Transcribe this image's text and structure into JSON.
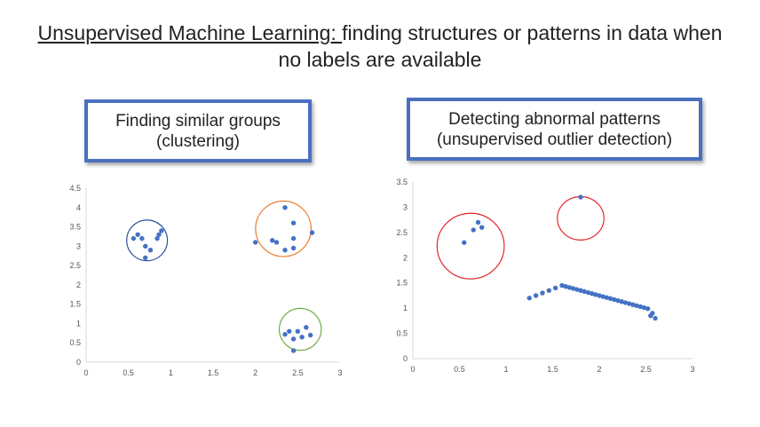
{
  "header": {
    "title_underlined": "Unsupervised Machine Learning: ",
    "title_line1_rest": "finding structures or patterns in data when",
    "title_line2": "no labels are available"
  },
  "boxes": {
    "left": {
      "line1": "Finding similar groups",
      "line2": "(clustering)"
    },
    "right": {
      "line1": "Detecting abnormal patterns",
      "line2": "(unsupervised outlier detection)"
    }
  },
  "colors": {
    "points": "#4472c4",
    "axis": "#d9d9d9",
    "cluster1": "#2f4f9f",
    "cluster2": "#ed7d31",
    "cluster3": "#70ad47",
    "outlier": "#e0282c"
  },
  "chart_data": [
    {
      "type": "scatter",
      "xlim": [
        0,
        3
      ],
      "ylim": [
        0,
        4.5
      ],
      "x_ticks": [
        "0",
        "0.5",
        "1",
        "1.5",
        "2",
        "2.5",
        "3"
      ],
      "y_ticks": [
        "0",
        "0.5",
        "1",
        "1.5",
        "2",
        "2.5",
        "3",
        "3.5",
        "4",
        "4.5"
      ],
      "points": [
        [
          0.56,
          3.2
        ],
        [
          0.61,
          3.3
        ],
        [
          0.66,
          3.2
        ],
        [
          0.7,
          3.0
        ],
        [
          0.7,
          2.7
        ],
        [
          0.76,
          2.9
        ],
        [
          0.84,
          3.2
        ],
        [
          0.86,
          3.3
        ],
        [
          0.89,
          3.4
        ],
        [
          2.0,
          3.1
        ],
        [
          2.2,
          3.15
        ],
        [
          2.25,
          3.1
        ],
        [
          2.35,
          4.0
        ],
        [
          2.35,
          2.9
        ],
        [
          2.45,
          3.6
        ],
        [
          2.45,
          3.2
        ],
        [
          2.45,
          2.95
        ],
        [
          2.67,
          3.35
        ],
        [
          2.35,
          0.72
        ],
        [
          2.4,
          0.8
        ],
        [
          2.45,
          0.6
        ],
        [
          2.45,
          0.3
        ],
        [
          2.5,
          0.8
        ],
        [
          2.55,
          0.65
        ],
        [
          2.6,
          0.9
        ],
        [
          2.65,
          0.7
        ]
      ],
      "circles": [
        {
          "label": "cluster1",
          "cx": 0.72,
          "cy": 3.15,
          "r": 0.33
        },
        {
          "label": "cluster2",
          "cx": 2.33,
          "cy": 3.45,
          "r": 0.45
        },
        {
          "label": "cluster3",
          "cx": 2.53,
          "cy": 0.85,
          "r": 0.34
        }
      ]
    },
    {
      "type": "scatter",
      "xlim": [
        0,
        3
      ],
      "ylim": [
        0,
        3.5
      ],
      "x_ticks": [
        "0",
        "0.5",
        "1",
        "1.5",
        "2",
        "2.5",
        "3"
      ],
      "y_ticks": [
        "0",
        "0.5",
        "1",
        "1.5",
        "2",
        "2.5",
        "3",
        "3.5"
      ],
      "points": [
        [
          0.55,
          2.3
        ],
        [
          0.65,
          2.55
        ],
        [
          0.7,
          2.7
        ],
        [
          0.74,
          2.6
        ],
        [
          1.8,
          3.2
        ],
        [
          1.25,
          1.2
        ],
        [
          1.32,
          1.25
        ],
        [
          1.39,
          1.3
        ],
        [
          1.46,
          1.35
        ],
        [
          1.53,
          1.4
        ],
        [
          1.6,
          1.45
        ],
        [
          1.64,
          1.43
        ],
        [
          1.68,
          1.41
        ],
        [
          1.72,
          1.39
        ],
        [
          1.76,
          1.37
        ],
        [
          1.8,
          1.35
        ],
        [
          1.84,
          1.33
        ],
        [
          1.88,
          1.31
        ],
        [
          1.92,
          1.29
        ],
        [
          1.96,
          1.27
        ],
        [
          2.0,
          1.25
        ],
        [
          2.04,
          1.23
        ],
        [
          2.08,
          1.21
        ],
        [
          2.12,
          1.19
        ],
        [
          2.16,
          1.17
        ],
        [
          2.2,
          1.15
        ],
        [
          2.24,
          1.13
        ],
        [
          2.28,
          1.11
        ],
        [
          2.32,
          1.09
        ],
        [
          2.36,
          1.07
        ],
        [
          2.4,
          1.05
        ],
        [
          2.44,
          1.03
        ],
        [
          2.48,
          1.01
        ],
        [
          2.52,
          0.99
        ],
        [
          2.55,
          0.85
        ],
        [
          2.57,
          0.9
        ],
        [
          2.6,
          0.8
        ]
      ],
      "circles": [
        {
          "label": "outlier",
          "cx": 0.62,
          "cy": 2.23,
          "rx": 0.36,
          "ry": 0.65
        },
        {
          "label": "outlier",
          "cx": 1.8,
          "cy": 2.78,
          "rx": 0.25,
          "ry": 0.43
        }
      ]
    }
  ]
}
